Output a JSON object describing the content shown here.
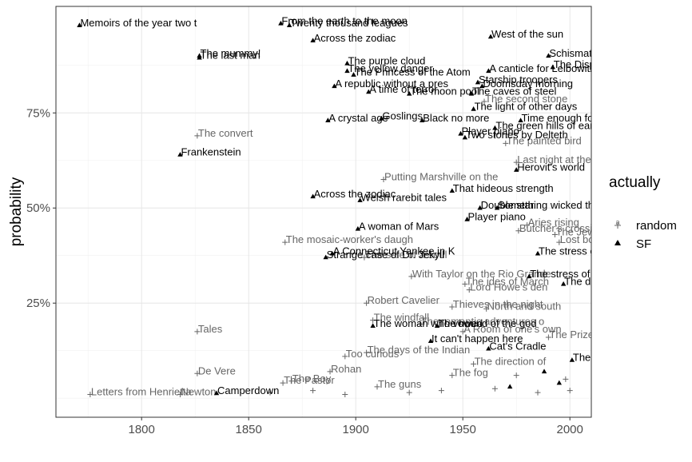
{
  "chart_data": {
    "type": "scatter",
    "title": "",
    "xlabel": "",
    "ylabel": "probability",
    "xlim": [
      1760,
      2010
    ],
    "ylim": [
      -0.05,
      1.03
    ],
    "x_ticks": [
      1800,
      1850,
      1900,
      1950,
      2000
    ],
    "x_tick_labels": [
      "1800",
      "1850",
      "1900",
      "1950",
      "2000"
    ],
    "y_ticks": [
      0.25,
      0.5,
      0.75
    ],
    "y_tick_labels": [
      "25%",
      "50%",
      "75%"
    ],
    "grid": true,
    "legend": {
      "title": "actually",
      "position": "right",
      "entries": [
        {
          "name": "random",
          "color": "#666666",
          "marker": "cross"
        },
        {
          "name": "SF",
          "color": "#000000",
          "marker": "triangle"
        }
      ]
    },
    "series": [
      {
        "name": "SF",
        "color": "#000000",
        "points": [
          {
            "x": 1771,
            "y": 0.98,
            "label": "Memoirs of the year two t"
          },
          {
            "x": 1827,
            "y": 0.9,
            "label": "The mummy!"
          },
          {
            "x": 1827,
            "y": 0.895,
            "label": "The last man"
          },
          {
            "x": 1818,
            "y": 0.64,
            "label": "Frankenstein"
          },
          {
            "x": 1835,
            "y": 0.013,
            "label": "Camperdown"
          },
          {
            "x": 1865,
            "y": 0.985,
            "label": "From the earth to the moon"
          },
          {
            "x": 1869,
            "y": 0.98,
            "label": "Twenty thousand leagues"
          },
          {
            "x": 1880,
            "y": 0.94,
            "label": "Across the zodiac"
          },
          {
            "x": 1880,
            "y": 0.53,
            "label": "Across the zodiac"
          },
          {
            "x": 1887,
            "y": 0.73,
            "label": "A crystal age"
          },
          {
            "x": 1890,
            "y": 0.82,
            "label": "A republic without a pres"
          },
          {
            "x": 1896,
            "y": 0.88,
            "label": "The purple cloud"
          },
          {
            "x": 1896,
            "y": 0.86,
            "label": "The yellow danger"
          },
          {
            "x": 1899,
            "y": 0.85,
            "label": "The Princess of the Atom"
          },
          {
            "x": 1901,
            "y": 0.445,
            "label": "A woman of Mars"
          },
          {
            "x": 1902,
            "y": 0.52,
            "label": "Welsh rarebit tales"
          },
          {
            "x": 1906,
            "y": 0.805,
            "label": "A time of terror"
          },
          {
            "x": 1912,
            "y": 0.735,
            "label": "Goslings"
          },
          {
            "x": 1889,
            "y": 0.38,
            "label": "A Connecticut Yankee in K"
          },
          {
            "x": 1886,
            "y": 0.37,
            "label": "Strange case of Dr. Jekyll"
          },
          {
            "x": 1908,
            "y": 0.19,
            "label": "The woman who vowed"
          },
          {
            "x": 1925,
            "y": 0.8,
            "label": "The moon pool"
          },
          {
            "x": 1931,
            "y": 0.73,
            "label": "Black no more"
          },
          {
            "x": 1935,
            "y": 0.15,
            "label": "It can't happen here"
          },
          {
            "x": 1945,
            "y": 0.545,
            "label": "That hideous strength"
          },
          {
            "x": 1949,
            "y": 0.695,
            "label": "Player piano"
          },
          {
            "x": 1951,
            "y": 0.685,
            "label": "Two stories by Delteth"
          },
          {
            "x": 1952,
            "y": 0.47,
            "label": "Player piano"
          },
          {
            "x": 1954,
            "y": 0.8,
            "label": "The caves of steel"
          },
          {
            "x": 1955,
            "y": 0.76,
            "label": "The light of other days"
          },
          {
            "x": 1957,
            "y": 0.83,
            "label": "Starship troopers"
          },
          {
            "x": 1958,
            "y": 0.5,
            "label": "Double star"
          },
          {
            "x": 1959,
            "y": 0.82,
            "label": "Doomsday morning"
          },
          {
            "x": 1962,
            "y": 0.13,
            "label": "Cat's Cradle"
          },
          {
            "x": 1962,
            "y": 0.86,
            "label": "A canticle for Leibowitz"
          },
          {
            "x": 1963,
            "y": 0.95,
            "label": "West of the sun"
          },
          {
            "x": 1965,
            "y": 0.71,
            "label": "The green hills of earth"
          },
          {
            "x": 1966,
            "y": 0.5,
            "label": "Something wicked this way"
          },
          {
            "x": 1975,
            "y": 0.6,
            "label": "Herovit's world"
          },
          {
            "x": 1977,
            "y": 0.73,
            "label": "Time enough for love"
          },
          {
            "x": 1981,
            "y": 0.32,
            "label": "The stress of her regard"
          },
          {
            "x": 1985,
            "y": 0.38,
            "label": "The stress of her regard"
          },
          {
            "x": 1992,
            "y": 0.87,
            "label": "The Dispossessed"
          },
          {
            "x": 1997,
            "y": 0.3,
            "label": "The drowned world"
          },
          {
            "x": 2001,
            "y": 0.1,
            "label": "The dead zone"
          },
          {
            "x": 1990,
            "y": 0.9,
            "label": "Schismatrix"
          },
          {
            "x": 1972,
            "y": 0.03,
            "label": ""
          },
          {
            "x": 1988,
            "y": 0.07,
            "label": ""
          },
          {
            "x": 1995,
            "y": 0.04,
            "label": ""
          },
          {
            "x": 1938,
            "y": 0.19,
            "label": "The hound of the god"
          }
        ]
      },
      {
        "name": "random",
        "color": "#666666",
        "points": [
          {
            "x": 1776,
            "y": 0.01,
            "label": "Letters from Henrietta"
          },
          {
            "x": 1826,
            "y": 0.69,
            "label": "The convert"
          },
          {
            "x": 1826,
            "y": 0.175,
            "label": "Tales"
          },
          {
            "x": 1826,
            "y": 0.065,
            "label": "De Vere"
          },
          {
            "x": 1818,
            "y": 0.01,
            "label": "Newton"
          },
          {
            "x": 1867,
            "y": 0.41,
            "label": "The mosaic-worker's daugh"
          },
          {
            "x": 1913,
            "y": 0.575,
            "label": "Putting Marshville on the"
          },
          {
            "x": 1905,
            "y": 0.25,
            "label": "Robert Cavelier"
          },
          {
            "x": 1908,
            "y": 0.205,
            "label": "The windfall"
          },
          {
            "x": 1904,
            "y": 0.37,
            "label": "The sale of a soul"
          },
          {
            "x": 1926,
            "y": 0.32,
            "label": "With Taylor on the Rio Grande"
          },
          {
            "x": 1930,
            "y": 0.195,
            "label": "The romantic adventures o"
          },
          {
            "x": 1895,
            "y": 0.11,
            "label": "Too curious"
          },
          {
            "x": 1905,
            "y": 0.12,
            "label": "The days of the Indian"
          },
          {
            "x": 1888,
            "y": 0.07,
            "label": "Rohan"
          },
          {
            "x": 1866,
            "y": 0.04,
            "label": "The Pastor"
          },
          {
            "x": 1870,
            "y": 0.045,
            "label": "The Boy"
          },
          {
            "x": 1945,
            "y": 0.24,
            "label": "Thieves in the night"
          },
          {
            "x": 1953,
            "y": 0.285,
            "label": "Lord Howe's den"
          },
          {
            "x": 1951,
            "y": 0.3,
            "label": "The ides of March"
          },
          {
            "x": 1950,
            "y": 0.175,
            "label": "A Room of one's own"
          },
          {
            "x": 1961,
            "y": 0.235,
            "label": "North and south"
          },
          {
            "x": 1976,
            "y": 0.44,
            "label": "Butcher's crossing"
          },
          {
            "x": 1975,
            "y": 0.62,
            "label": "Last night at the"
          },
          {
            "x": 1980,
            "y": 0.455,
            "label": "Aries rising"
          },
          {
            "x": 1993,
            "y": 0.43,
            "label": "The Jewel"
          },
          {
            "x": 1995,
            "y": 0.41,
            "label": "Lost boys"
          },
          {
            "x": 1960,
            "y": 0.78,
            "label": "The second stone"
          },
          {
            "x": 1970,
            "y": 0.67,
            "label": "The painted bird"
          },
          {
            "x": 1990,
            "y": 0.16,
            "label": "The Prize"
          },
          {
            "x": 1955,
            "y": 0.09,
            "label": "The direction of"
          },
          {
            "x": 1945,
            "y": 0.06,
            "label": "The fog"
          },
          {
            "x": 1910,
            "y": 0.03,
            "label": "The guns"
          },
          {
            "x": 1880,
            "y": 0.02,
            "label": ""
          },
          {
            "x": 1925,
            "y": 0.015,
            "label": ""
          },
          {
            "x": 1940,
            "y": 0.02,
            "label": ""
          },
          {
            "x": 1965,
            "y": 0.025,
            "label": ""
          },
          {
            "x": 1985,
            "y": 0.015,
            "label": ""
          },
          {
            "x": 2000,
            "y": 0.02,
            "label": ""
          },
          {
            "x": 1860,
            "y": 0.015,
            "label": ""
          },
          {
            "x": 1895,
            "y": 0.01,
            "label": ""
          },
          {
            "x": 1975,
            "y": 0.06,
            "label": ""
          },
          {
            "x": 1998,
            "y": 0.05,
            "label": ""
          }
        ]
      }
    ]
  }
}
